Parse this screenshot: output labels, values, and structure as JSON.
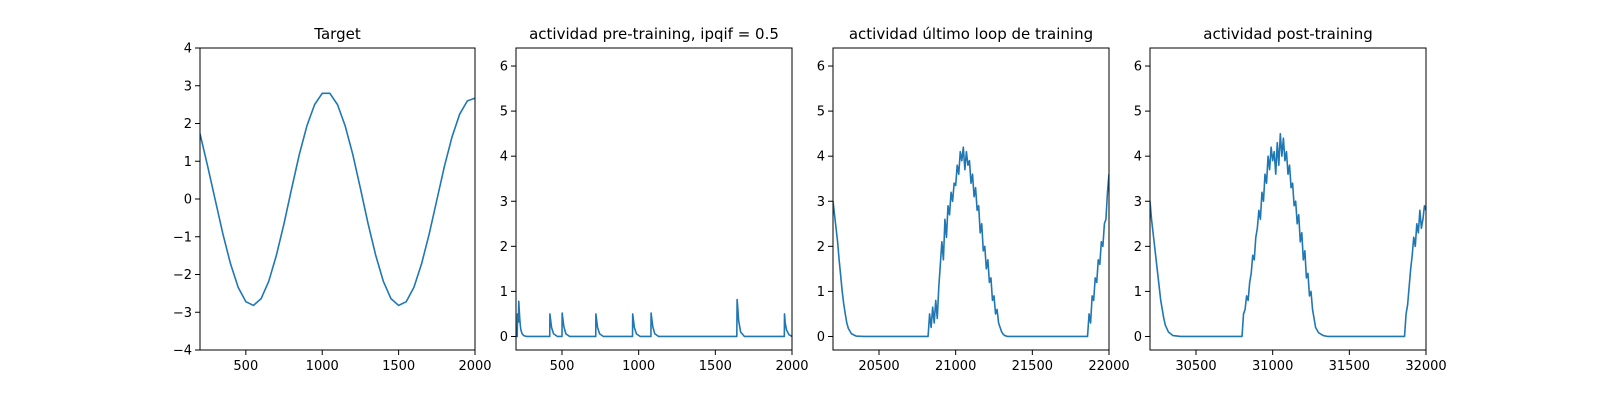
{
  "chart_data": [
    {
      "type": "line",
      "title": "Target",
      "xlim": [
        200,
        2000
      ],
      "ylim": [
        -4,
        4
      ],
      "xticks": [
        500,
        1000,
        1500,
        2000
      ],
      "yticks": [
        -4,
        -3,
        -2,
        -1,
        0,
        1,
        2,
        3,
        4
      ],
      "xticklabels": [
        "500",
        "1000",
        "1500",
        "2000"
      ],
      "yticklabels": [
        "−4",
        "−3",
        "−2",
        "−1",
        "0",
        "1",
        "2",
        "3",
        "4"
      ],
      "color": "#1f77b4",
      "series": [
        {
          "x": [
            200,
            250,
            300,
            350,
            400,
            450,
            500,
            550,
            600,
            650,
            700,
            750,
            800,
            850,
            900,
            950,
            1000,
            1050,
            1100,
            1150,
            1200,
            1250,
            1300,
            1350,
            1400,
            1450,
            1500,
            1550,
            1600,
            1650,
            1700,
            1750,
            1800,
            1850,
            1900,
            1950,
            2000
          ],
          "y": [
            1.73,
            0.87,
            -0.03,
            -0.93,
            -1.72,
            -2.34,
            -2.72,
            -2.82,
            -2.64,
            -2.18,
            -1.49,
            -0.65,
            0.28,
            1.18,
            1.94,
            2.5,
            2.8,
            2.8,
            2.5,
            1.94,
            1.18,
            0.28,
            -0.65,
            -1.49,
            -2.18,
            -2.64,
            -2.82,
            -2.72,
            -2.34,
            -1.72,
            -0.93,
            -0.03,
            0.87,
            1.65,
            2.25,
            2.6,
            2.67
          ]
        }
      ]
    },
    {
      "type": "line",
      "title": "actividad pre-training, ipqif = 0.5",
      "xlim": [
        200,
        2000
      ],
      "ylim": [
        -0.3,
        6.4
      ],
      "xticks": [
        500,
        1000,
        1500,
        2000
      ],
      "yticks": [
        0,
        1,
        2,
        3,
        4,
        5,
        6
      ],
      "xticklabels": [
        "500",
        "1000",
        "1500",
        "2000"
      ],
      "yticklabels": [
        "0",
        "1",
        "2",
        "3",
        "4",
        "5",
        "6"
      ],
      "color": "#1f77b4",
      "series": [
        {
          "x": [
            200,
            208,
            210,
            212,
            214,
            216,
            218,
            220,
            224,
            228,
            232,
            240,
            250,
            270,
            300,
            420,
            421,
            432,
            445,
            470,
            500,
            501,
            512,
            525,
            550,
            720,
            721,
            732,
            745,
            770,
            960,
            961,
            972,
            985,
            1010,
            1080,
            1081,
            1092,
            1105,
            1130,
            1640,
            1642,
            1645,
            1652,
            1665,
            1690,
            1950,
            1951,
            1956,
            1964,
            1980,
            2000
          ],
          "y": [
            0.0,
            0.0,
            0.5,
            0.35,
            0.5,
            0.32,
            0.78,
            0.65,
            0.42,
            0.25,
            0.14,
            0.06,
            0.02,
            0.0,
            0.0,
            0.0,
            0.5,
            0.2,
            0.06,
            0.0,
            0.0,
            0.52,
            0.22,
            0.06,
            0.0,
            0.0,
            0.5,
            0.2,
            0.06,
            0.0,
            0.0,
            0.5,
            0.2,
            0.06,
            0.0,
            0.0,
            0.52,
            0.22,
            0.06,
            0.0,
            0.0,
            0.82,
            0.7,
            0.35,
            0.1,
            0.0,
            0.0,
            0.5,
            0.3,
            0.15,
            0.04,
            0.0
          ]
        }
      ]
    },
    {
      "type": "line",
      "title": "actividad último loop de training",
      "xlim": [
        20200,
        22000
      ],
      "ylim": [
        -0.3,
        6.4
      ],
      "xticks": [
        20500,
        21000,
        21500,
        22000
      ],
      "yticks": [
        0,
        1,
        2,
        3,
        4,
        5,
        6
      ],
      "xticklabels": [
        "20500",
        "21000",
        "21500",
        "22000"
      ],
      "yticklabels": [
        "0",
        "1",
        "2",
        "3",
        "4",
        "5",
        "6"
      ],
      "color": "#1f77b4",
      "series": [
        {
          "x": [
            20200,
            20210,
            20220,
            20230,
            20240,
            20250,
            20260,
            20270,
            20280,
            20290,
            20300,
            20320,
            20350,
            20400,
            20820,
            20830,
            20840,
            20850,
            20860,
            20870,
            20880,
            20890,
            20900,
            20910,
            20920,
            20930,
            20940,
            20950,
            20960,
            20970,
            20980,
            20990,
            21000,
            21010,
            21020,
            21030,
            21040,
            21050,
            21060,
            21070,
            21080,
            21090,
            21100,
            21110,
            21120,
            21130,
            21140,
            21150,
            21160,
            21170,
            21180,
            21190,
            21200,
            21210,
            21220,
            21230,
            21240,
            21250,
            21260,
            21270,
            21280,
            21290,
            21300,
            21310,
            21320,
            21340,
            21370,
            21400,
            21860,
            21870,
            21880,
            21890,
            21900,
            21910,
            21920,
            21930,
            21940,
            21950,
            21960,
            21970,
            21980,
            21990,
            22000
          ],
          "y": [
            3.0,
            2.7,
            2.4,
            2.1,
            1.7,
            1.35,
            1.0,
            0.72,
            0.5,
            0.3,
            0.18,
            0.06,
            0.01,
            0.0,
            0.0,
            0.5,
            0.2,
            0.65,
            0.3,
            0.8,
            0.4,
            1.1,
            1.6,
            2.1,
            1.7,
            2.6,
            2.2,
            2.9,
            2.7,
            3.2,
            3.0,
            3.4,
            3.35,
            3.8,
            3.6,
            4.1,
            3.9,
            4.2,
            3.7,
            4.1,
            3.8,
            3.9,
            3.4,
            3.6,
            3.1,
            3.3,
            2.8,
            2.9,
            2.3,
            2.5,
            1.9,
            2.0,
            1.5,
            1.7,
            1.2,
            1.3,
            0.8,
            0.9,
            0.5,
            0.6,
            0.3,
            0.2,
            0.1,
            0.05,
            0.02,
            0.0,
            0.0,
            0.0,
            0.0,
            0.5,
            0.3,
            0.9,
            0.8,
            1.3,
            1.2,
            1.7,
            1.6,
            2.1,
            2.0,
            2.5,
            2.6,
            3.2,
            3.6
          ]
        }
      ]
    },
    {
      "type": "line",
      "title": "actividad post-training",
      "xlim": [
        30200,
        32000
      ],
      "ylim": [
        -0.3,
        6.4
      ],
      "xticks": [
        30500,
        31000,
        31500,
        32000
      ],
      "yticks": [
        0,
        1,
        2,
        3,
        4,
        5,
        6
      ],
      "xticklabels": [
        "30500",
        "31000",
        "31500",
        "32000"
      ],
      "yticklabels": [
        "0",
        "1",
        "2",
        "3",
        "4",
        "5",
        "6"
      ],
      "color": "#1f77b4",
      "series": [
        {
          "x": [
            30200,
            30210,
            30220,
            30230,
            30240,
            30250,
            30260,
            30270,
            30280,
            30290,
            30300,
            30320,
            30350,
            30400,
            30800,
            30810,
            30820,
            30830,
            30840,
            30850,
            30860,
            30870,
            30880,
            30890,
            30900,
            30910,
            30920,
            30930,
            30940,
            30950,
            30960,
            30970,
            30980,
            30990,
            31000,
            31010,
            31020,
            31030,
            31040,
            31050,
            31060,
            31070,
            31080,
            31090,
            31100,
            31110,
            31120,
            31130,
            31140,
            31150,
            31160,
            31170,
            31180,
            31190,
            31200,
            31210,
            31220,
            31230,
            31240,
            31250,
            31260,
            31270,
            31280,
            31300,
            31330,
            31360,
            31400,
            31860,
            31870,
            31880,
            31890,
            31900,
            31910,
            31920,
            31930,
            31940,
            31950,
            31960,
            31970,
            31980,
            31990,
            32000
          ],
          "y": [
            3.0,
            2.6,
            2.3,
            2.0,
            1.7,
            1.4,
            1.1,
            0.8,
            0.6,
            0.4,
            0.25,
            0.1,
            0.02,
            0.0,
            0.0,
            0.5,
            0.6,
            0.9,
            0.8,
            1.2,
            1.4,
            1.8,
            1.7,
            2.2,
            2.4,
            2.8,
            2.6,
            3.2,
            3.0,
            3.6,
            3.4,
            4.0,
            3.7,
            4.2,
            3.9,
            4.1,
            3.6,
            4.3,
            3.8,
            4.5,
            4.0,
            4.4,
            3.9,
            4.1,
            3.6,
            3.8,
            3.3,
            3.4,
            2.9,
            3.0,
            2.5,
            2.7,
            2.1,
            2.3,
            1.7,
            1.9,
            1.3,
            1.4,
            0.9,
            1.0,
            0.6,
            0.4,
            0.2,
            0.08,
            0.02,
            0.0,
            0.0,
            0.0,
            0.5,
            0.7,
            1.1,
            1.5,
            1.8,
            2.2,
            2.0,
            2.5,
            2.3,
            2.8,
            2.4,
            2.6,
            2.9,
            2.8
          ]
        }
      ]
    }
  ]
}
